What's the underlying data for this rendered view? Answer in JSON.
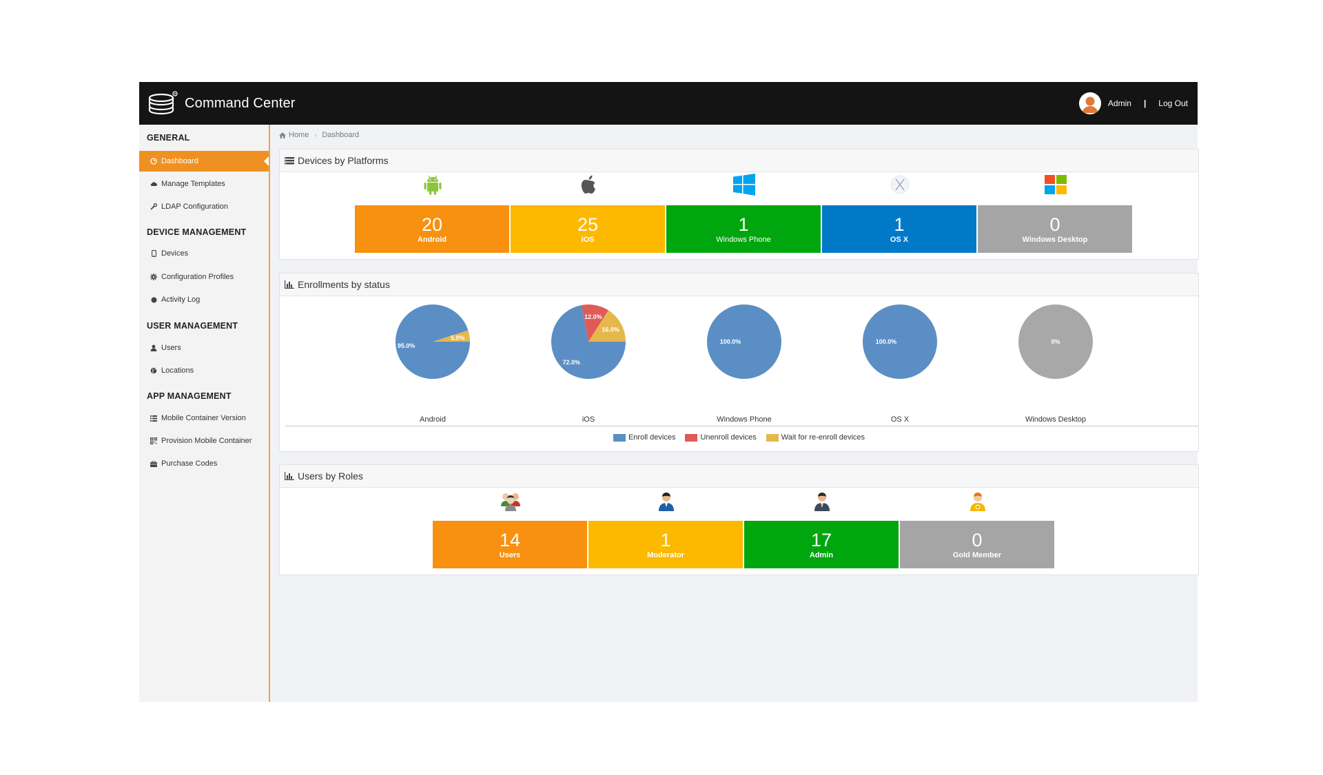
{
  "app": {
    "title": "Command Center"
  },
  "user": {
    "name": "Admin",
    "separator": "|",
    "logout_label": "Log Out"
  },
  "sidebar": {
    "sections": [
      {
        "title": "GENERAL",
        "items": [
          {
            "label": "Dashboard",
            "icon": "dashboard-icon",
            "active": true
          },
          {
            "label": "Manage Templates",
            "icon": "cloud-icon"
          },
          {
            "label": "LDAP Configuration",
            "icon": "wrench-icon"
          }
        ]
      },
      {
        "title": "DEVICE MANAGEMENT",
        "items": [
          {
            "label": "Devices",
            "icon": "mobile-icon"
          },
          {
            "label": "Configuration Profiles",
            "icon": "gear-icon"
          },
          {
            "label": "Activity Log",
            "icon": "record-icon"
          }
        ]
      },
      {
        "title": "USER MANAGEMENT",
        "items": [
          {
            "label": "Users",
            "icon": "user-icon"
          },
          {
            "label": "Locations",
            "icon": "globe-icon"
          }
        ]
      },
      {
        "title": "APP MANAGEMENT",
        "items": [
          {
            "label": "Mobile Container Version",
            "icon": "list-icon"
          },
          {
            "label": "Provision Mobile Container",
            "icon": "qrcode-icon"
          },
          {
            "label": "Purchase Codes",
            "icon": "briefcase-icon"
          }
        ]
      }
    ]
  },
  "breadcrumb": {
    "home": "Home",
    "current": "Dashboard"
  },
  "platforms": {
    "title": "Devices by Platforms",
    "tiles": [
      {
        "value": "20",
        "label": "Android",
        "color": "#f7910f",
        "icon": "android-icon"
      },
      {
        "value": "25",
        "label": "iOS",
        "color": "#fcb900",
        "icon": "apple-icon"
      },
      {
        "value": "1",
        "label": "Windows Phone",
        "color": "#00a60e",
        "icon": "windows-icon"
      },
      {
        "value": "1",
        "label": "OS X",
        "color": "#0279c7",
        "icon": "osx-icon"
      },
      {
        "value": "0",
        "label": "Windows Desktop",
        "color": "#a5a5a5",
        "icon": "windows-color-icon"
      }
    ]
  },
  "enrollments": {
    "title": "Enrollments by status",
    "legend": [
      {
        "label": "Enroll devices",
        "color": "#5b8ec4"
      },
      {
        "label": "Unenroll devices",
        "color": "#e05a57"
      },
      {
        "label": "Wait for re-enroll devices",
        "color": "#e5b84b"
      }
    ],
    "pies": [
      {
        "name": "Android",
        "slices": [
          {
            "value": 95,
            "label": "95.0%"
          },
          {
            "value": 0,
            "label": ""
          },
          {
            "value": 5,
            "label": "5.0%"
          }
        ]
      },
      {
        "name": "iOS",
        "slices": [
          {
            "value": 72,
            "label": "72.0%"
          },
          {
            "value": 12,
            "label": "12.0%"
          },
          {
            "value": 16,
            "label": "16.0%"
          }
        ]
      },
      {
        "name": "Windows Phone",
        "slices": [
          {
            "value": 100,
            "label": "100.0%"
          }
        ]
      },
      {
        "name": "OS X",
        "slices": [
          {
            "value": 100,
            "label": "100.0%"
          }
        ]
      },
      {
        "name": "Windows Desktop",
        "empty": true,
        "empty_color": "#a8a8a8",
        "slices": [
          {
            "value": 0,
            "label": "0%"
          }
        ]
      }
    ]
  },
  "chart_data": {
    "type": "pie",
    "title": "Enrollments by status",
    "categories": [
      "Enroll devices",
      "Unenroll devices",
      "Wait for re-enroll devices"
    ],
    "series": [
      {
        "name": "Android",
        "values": [
          95.0,
          0,
          5.0
        ]
      },
      {
        "name": "iOS",
        "values": [
          72.0,
          12.0,
          16.0
        ]
      },
      {
        "name": "Windows Phone",
        "values": [
          100.0,
          0,
          0
        ]
      },
      {
        "name": "OS X",
        "values": [
          100.0,
          0,
          0
        ]
      },
      {
        "name": "Windows Desktop",
        "values": [
          0,
          0,
          0
        ]
      }
    ],
    "legend": "bottom"
  },
  "roles": {
    "title": "Users by Roles",
    "tiles": [
      {
        "value": "14",
        "label": "Users",
        "color": "#f7910f",
        "icon": "users-group-icon"
      },
      {
        "value": "1",
        "label": "Moderator",
        "color": "#fcb900",
        "icon": "moderator-icon"
      },
      {
        "value": "17",
        "label": "Admin",
        "color": "#00a60e",
        "icon": "admin-icon"
      },
      {
        "value": "0",
        "label": "Gold Member",
        "color": "#a5a5a5",
        "icon": "gold-member-icon"
      }
    ]
  }
}
